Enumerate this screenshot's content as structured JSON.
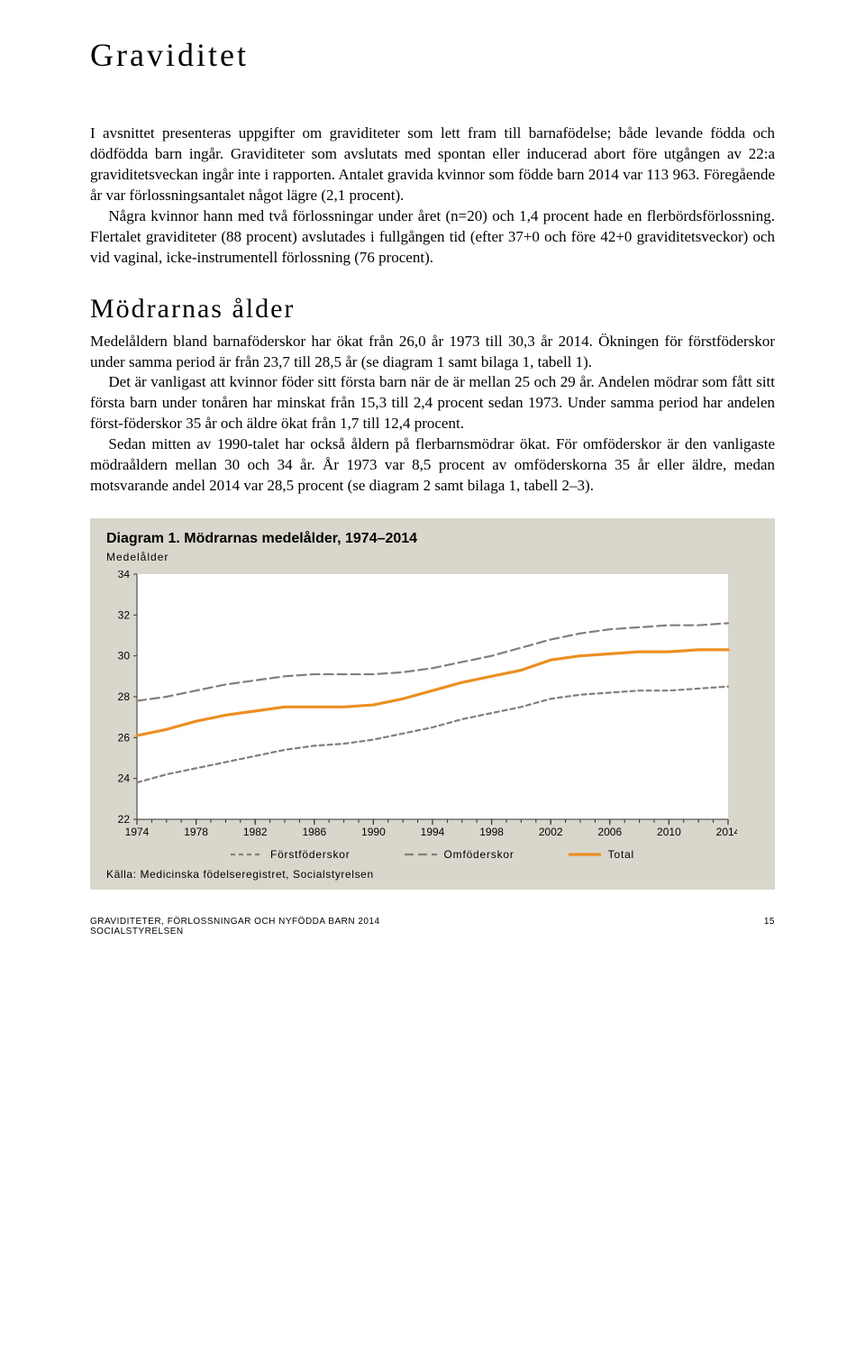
{
  "title": "Graviditet",
  "para1": "I avsnittet presenteras uppgifter om graviditeter som lett fram till barnafödelse; både levande födda och dödfödda barn ingår. Graviditeter som avslutats med spontan eller inducerad abort före utgången av 22:a graviditetsveckan ingår inte i rapporten. Antalet gravida kvinnor som födde barn 2014 var 113 963. Föregående år var förlossningsantalet något lägre (2,1 procent).",
  "para2": "Några kvinnor hann med två förlossningar under året (n=20) och 1,4 procent hade en flerbördsförlossning. Flertalet graviditeter (88 procent) avslutades i fullgången tid (efter 37+0 och före 42+0 graviditetsveckor) och vid vaginal, icke-instrumentell förlossning (76 procent).",
  "section2_title": "Mödrarnas ålder",
  "para3": "Medelåldern bland barnaföderskor har ökat från 26,0 år 1973 till 30,3 år 2014. Ökningen för förstföderskor under samma period är från 23,7 till 28,5 år (se diagram 1 samt bilaga 1, tabell 1).",
  "para4": "Det är vanligast att kvinnor föder sitt första barn när de är mellan 25 och 29 år. Andelen mödrar som fått sitt första barn under tonåren har minskat från 15,3 till 2,4 procent sedan 1973. Under samma period har andelen först-föderskor 35 år och äldre ökat från 1,7 till 12,4 procent.",
  "para5": "Sedan mitten av 1990-talet har också åldern på flerbarnsmödrar ökat. För omföderskor är den vanligaste mödraåldern mellan 30 och 34 år. År 1973 var 8,5 procent av omföderskorna 35 år eller äldre, medan motsvarande andel 2014 var 28,5 procent (se diagram 2 samt bilaga 1, tabell 2–3).",
  "diagram": {
    "type": "line",
    "title": "Diagram 1. Mödrarnas medelålder, 1974–2014",
    "y_axis_label": "Medelålder",
    "xlim": [
      1974,
      2014
    ],
    "ylim": [
      22,
      34
    ],
    "ytick_step": 2,
    "xtick_step": 4,
    "x_ticks": [
      1974,
      1978,
      1982,
      1986,
      1990,
      1994,
      1998,
      2002,
      2006,
      2010,
      2014
    ],
    "y_ticks": [
      22,
      24,
      26,
      28,
      30,
      32,
      34
    ],
    "background_color": "#d9d7cc",
    "plot_background": "#ffffff",
    "axis_color": "#333333",
    "tick_font_size": 12,
    "label_font_size": 12,
    "title_font_size": 16,
    "line_width_main": 3.2,
    "line_width_dash": 2.2,
    "series": [
      {
        "name": "Förstföderskor",
        "color": "#857e77",
        "dash": "5,4",
        "width": 2.2,
        "x": [
          1974,
          1976,
          1978,
          1980,
          1982,
          1984,
          1986,
          1988,
          1990,
          1992,
          1994,
          1996,
          1998,
          2000,
          2002,
          2004,
          2006,
          2008,
          2010,
          2012,
          2014
        ],
        "y": [
          23.8,
          24.2,
          24.5,
          24.8,
          25.1,
          25.4,
          25.6,
          25.7,
          25.9,
          26.2,
          26.5,
          26.9,
          27.2,
          27.5,
          27.9,
          28.1,
          28.2,
          28.3,
          28.3,
          28.4,
          28.5
        ]
      },
      {
        "name": "Omföderskor",
        "color": "#857e77",
        "dash": "10,5",
        "width": 2.2,
        "x": [
          1974,
          1976,
          1978,
          1980,
          1982,
          1984,
          1986,
          1988,
          1990,
          1992,
          1994,
          1996,
          1998,
          2000,
          2002,
          2004,
          2006,
          2008,
          2010,
          2012,
          2014
        ],
        "y": [
          27.8,
          28.0,
          28.3,
          28.6,
          28.8,
          29.0,
          29.1,
          29.1,
          29.1,
          29.2,
          29.4,
          29.7,
          30.0,
          30.4,
          30.8,
          31.1,
          31.3,
          31.4,
          31.5,
          31.5,
          31.6
        ]
      },
      {
        "name": "Total",
        "color": "#ec8f22",
        "dash": "none",
        "width": 3.2,
        "x": [
          1974,
          1976,
          1978,
          1980,
          1982,
          1984,
          1986,
          1988,
          1990,
          1992,
          1994,
          1996,
          1998,
          2000,
          2002,
          2004,
          2006,
          2008,
          2010,
          2012,
          2014
        ],
        "y": [
          26.1,
          26.4,
          26.8,
          27.1,
          27.3,
          27.5,
          27.5,
          27.5,
          27.6,
          27.9,
          28.3,
          28.7,
          29.0,
          29.3,
          29.8,
          30.0,
          30.1,
          30.2,
          30.2,
          30.3,
          30.3
        ]
      }
    ],
    "legend": {
      "items": [
        "Förstföderskor",
        "Omföderskor",
        "Total"
      ]
    },
    "source": "Källa: Medicinska födelseregistret, Socialstyrelsen"
  },
  "footer": {
    "left1": "GRAVIDITETER, FÖRLOSSNINGAR OCH NYFÖDDA BARN 2014",
    "left2": "SOCIALSTYRELSEN",
    "page": "15"
  }
}
